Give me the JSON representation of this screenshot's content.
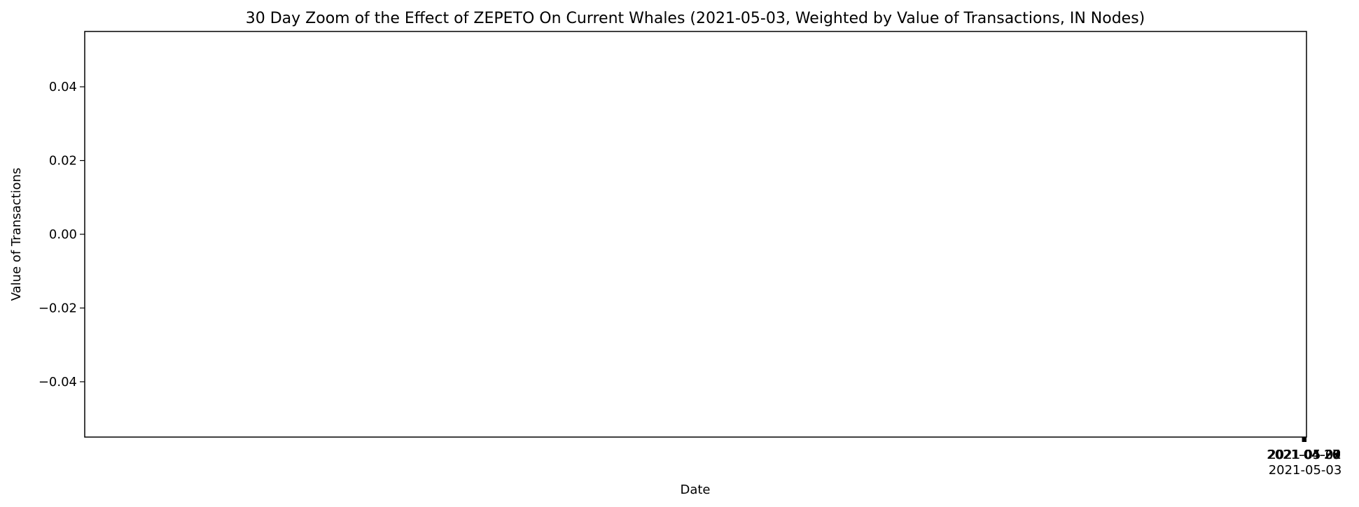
{
  "chart_data": {
    "type": "line",
    "title": "30 Day Zoom of the Effect of ZEPETO On Current Whales (2021-05-03, Weighted by Value of Transactions, IN Nodes)",
    "xlabel": "Date",
    "ylabel": "Value of Transactions",
    "ylim": [
      -0.055,
      0.055
    ],
    "y_ticks": [
      0.04,
      0.02,
      0.0,
      -0.02,
      -0.04
    ],
    "y_tick_labels": [
      "0.04",
      "0.02",
      "0.00",
      "−0.02",
      "−0.04"
    ],
    "x_tick_labels": [
      "2021-04-26",
      "2021-04-27",
      "2021-04-28",
      "2021-04-29",
      "2021-04-30",
      "2021-05-01",
      "2021-05-02",
      "2021-05-03"
    ],
    "series": [],
    "grid": false
  }
}
